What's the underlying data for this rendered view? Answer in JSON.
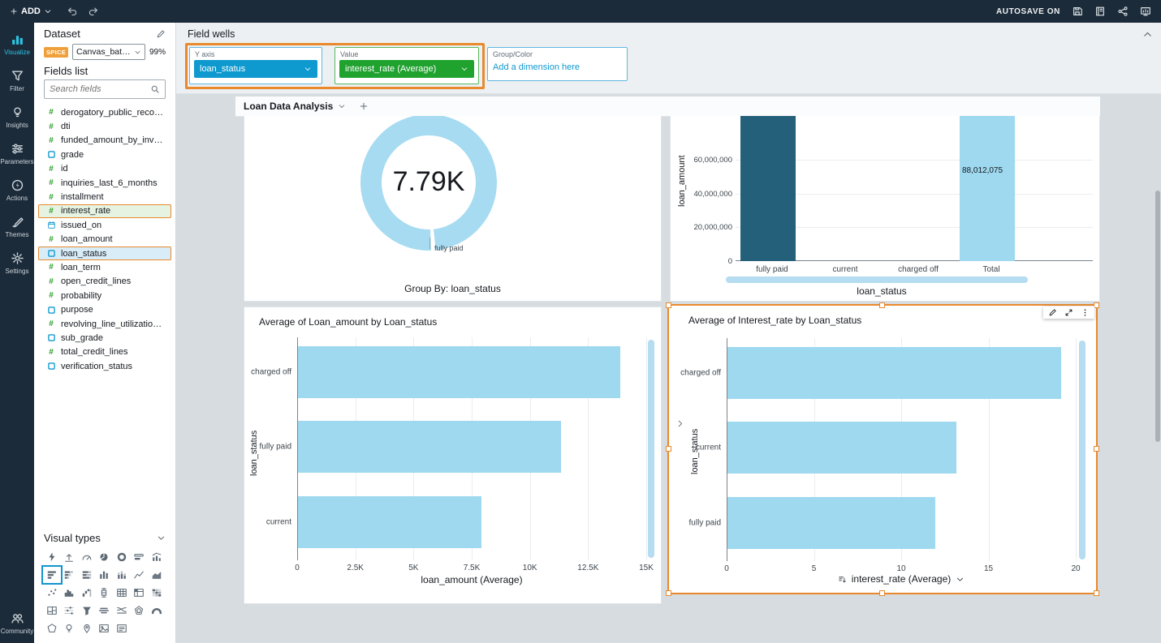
{
  "topbar": {
    "add_label": "ADD",
    "autosave_label": "AUTOSAVE ON",
    "icons": [
      "undo-icon",
      "redo-icon",
      "save-icon",
      "notebook-icon",
      "share-icon",
      "present-icon"
    ]
  },
  "rail": {
    "items": [
      {
        "label": "Visualize",
        "icon": "visualize-icon",
        "active": true
      },
      {
        "label": "Filter",
        "icon": "filter-icon",
        "active": false
      },
      {
        "label": "Insights",
        "icon": "insights-icon",
        "active": false
      },
      {
        "label": "Parameters",
        "icon": "parameters-icon",
        "active": false
      },
      {
        "label": "Actions",
        "icon": "actions-icon",
        "active": false
      },
      {
        "label": "Themes",
        "icon": "themes-icon",
        "active": false
      },
      {
        "label": "Settings",
        "icon": "settings-icon",
        "active": false
      }
    ],
    "community": {
      "label": "Community",
      "icon": "community-icon"
    }
  },
  "dataset_panel": {
    "title": "Dataset",
    "spice_badge": "SPICE",
    "dataset_name": "Canvas_batchIn...",
    "refresh_percent": "99%",
    "fields_list_title": "Fields list",
    "search_placeholder": "Search fields",
    "fields": [
      {
        "name": "derogatory_public_records",
        "type": "numeric"
      },
      {
        "name": "dti",
        "type": "numeric"
      },
      {
        "name": "funded_amount_by_investors",
        "type": "numeric"
      },
      {
        "name": "grade",
        "type": "categorical"
      },
      {
        "name": "id",
        "type": "numeric"
      },
      {
        "name": "inquiries_last_6_months",
        "type": "numeric"
      },
      {
        "name": "installment",
        "type": "numeric"
      },
      {
        "name": "interest_rate",
        "type": "numeric",
        "highlight": "green"
      },
      {
        "name": "issued_on",
        "type": "date"
      },
      {
        "name": "loan_amount",
        "type": "numeric"
      },
      {
        "name": "loan_status",
        "type": "categorical",
        "highlight": "blue"
      },
      {
        "name": "loan_term",
        "type": "numeric"
      },
      {
        "name": "open_credit_lines",
        "type": "numeric"
      },
      {
        "name": "probability",
        "type": "numeric"
      },
      {
        "name": "purpose",
        "type": "categorical"
      },
      {
        "name": "revolving_line_utilization_rate",
        "type": "numeric"
      },
      {
        "name": "sub_grade",
        "type": "categorical"
      },
      {
        "name": "total_credit_lines",
        "type": "numeric"
      },
      {
        "name": "verification_status",
        "type": "categorical"
      }
    ],
    "visual_types_title": "Visual types",
    "visual_types": [
      "auto-graph",
      "kpi",
      "gauge",
      "pie-chart",
      "donut-chart",
      "progress-bar",
      "combo-chart",
      "horizontal-bar-chart",
      "horizontal-stacked-bar-chart",
      "horizontal-100-stacked-bar-chart",
      "vertical-bar-chart",
      "vertical-stacked-bar-chart",
      "line-chart",
      "area-chart",
      "scatter-plot",
      "histogram",
      "waterfall-chart",
      "box-plot",
      "table",
      "pivot-table",
      "heat-map",
      "tree-map",
      "dot-plot",
      "funnel-chart",
      "word-cloud",
      "sankey-diagram",
      "radar-chart",
      "donut-gauge",
      "geospatial-map",
      "insight",
      "points-on-map",
      "image",
      "text-box"
    ],
    "selected_visual_type": "horizontal-bar-chart"
  },
  "field_wells": {
    "title": "Field wells",
    "wells": [
      {
        "label": "Y axis",
        "value": "loan_status",
        "color": "#0e99cf"
      },
      {
        "label": "Value",
        "value": "interest_rate (Average)",
        "color": "#1fa22e"
      },
      {
        "label": "Group/Color",
        "placeholder": "Add a dimension here"
      }
    ]
  },
  "sheet": {
    "tab_label": "Loan Data Analysis"
  },
  "colors": {
    "accent_orange": "#e8892d",
    "bar_light_blue": "#9ed9ef",
    "bar_dark_blue": "#25607a",
    "donut_blue": "#a6dbf1",
    "well_blue": "#0e99cf",
    "well_green": "#1fa22e"
  },
  "chart_data": [
    {
      "type": "pie",
      "subtype": "donut",
      "value_label": "7.79K",
      "segment_label": "fully paid",
      "footer": "Group By: loan_status"
    },
    {
      "type": "bar",
      "orientation": "vertical",
      "categories": [
        "fully paid",
        "current",
        "charged off",
        "Total"
      ],
      "ylabel": "loan_amount",
      "xlabel": "loan_status",
      "ylim_visible": [
        0,
        86000000
      ],
      "yticks": [
        {
          "v": 0,
          "label": "0"
        },
        {
          "v": 20000000,
          "label": "20,000,000"
        },
        {
          "v": 40000000,
          "label": "40,000,000"
        },
        {
          "v": 60000000,
          "label": "60,000,000"
        }
      ],
      "bars": [
        {
          "category": "fully paid",
          "color": "#25607a",
          "clipped_top": true,
          "value": null
        },
        {
          "category": "current",
          "value": null
        },
        {
          "category": "charged off",
          "value": null
        },
        {
          "category": "Total",
          "color": "#9ed9ef",
          "clipped_top": true,
          "value": 88012075,
          "data_label": "88,012,075"
        }
      ]
    },
    {
      "type": "bar",
      "orientation": "horizontal",
      "title": "Average of Loan_amount by Loan_status",
      "categories": [
        "charged off",
        "fully paid",
        "current"
      ],
      "values": [
        13850,
        11300,
        7900
      ],
      "xmax": 15000,
      "xticks": [
        {
          "v": 0,
          "label": "0"
        },
        {
          "v": 2500,
          "label": "2.5K"
        },
        {
          "v": 5000,
          "label": "5K"
        },
        {
          "v": 7500,
          "label": "7.5K"
        },
        {
          "v": 10000,
          "label": "10K"
        },
        {
          "v": 12500,
          "label": "12.5K"
        },
        {
          "v": 15000,
          "label": "15K"
        }
      ],
      "xlabel": "loan_amount (Average)",
      "ylabel": "loan_status"
    },
    {
      "type": "bar",
      "orientation": "horizontal",
      "title": "Average of Interest_rate by Loan_status",
      "categories": [
        "charged off",
        "current",
        "fully paid"
      ],
      "values": [
        19.1,
        13.1,
        11.9
      ],
      "xmax": 20,
      "xticks": [
        {
          "v": 0,
          "label": "0"
        },
        {
          "v": 5,
          "label": "5"
        },
        {
          "v": 10,
          "label": "10"
        },
        {
          "v": 15,
          "label": "15"
        },
        {
          "v": 20,
          "label": "20"
        }
      ],
      "xlabel": "interest_rate (Average)",
      "ylabel": "loan_status",
      "selected": true
    }
  ]
}
